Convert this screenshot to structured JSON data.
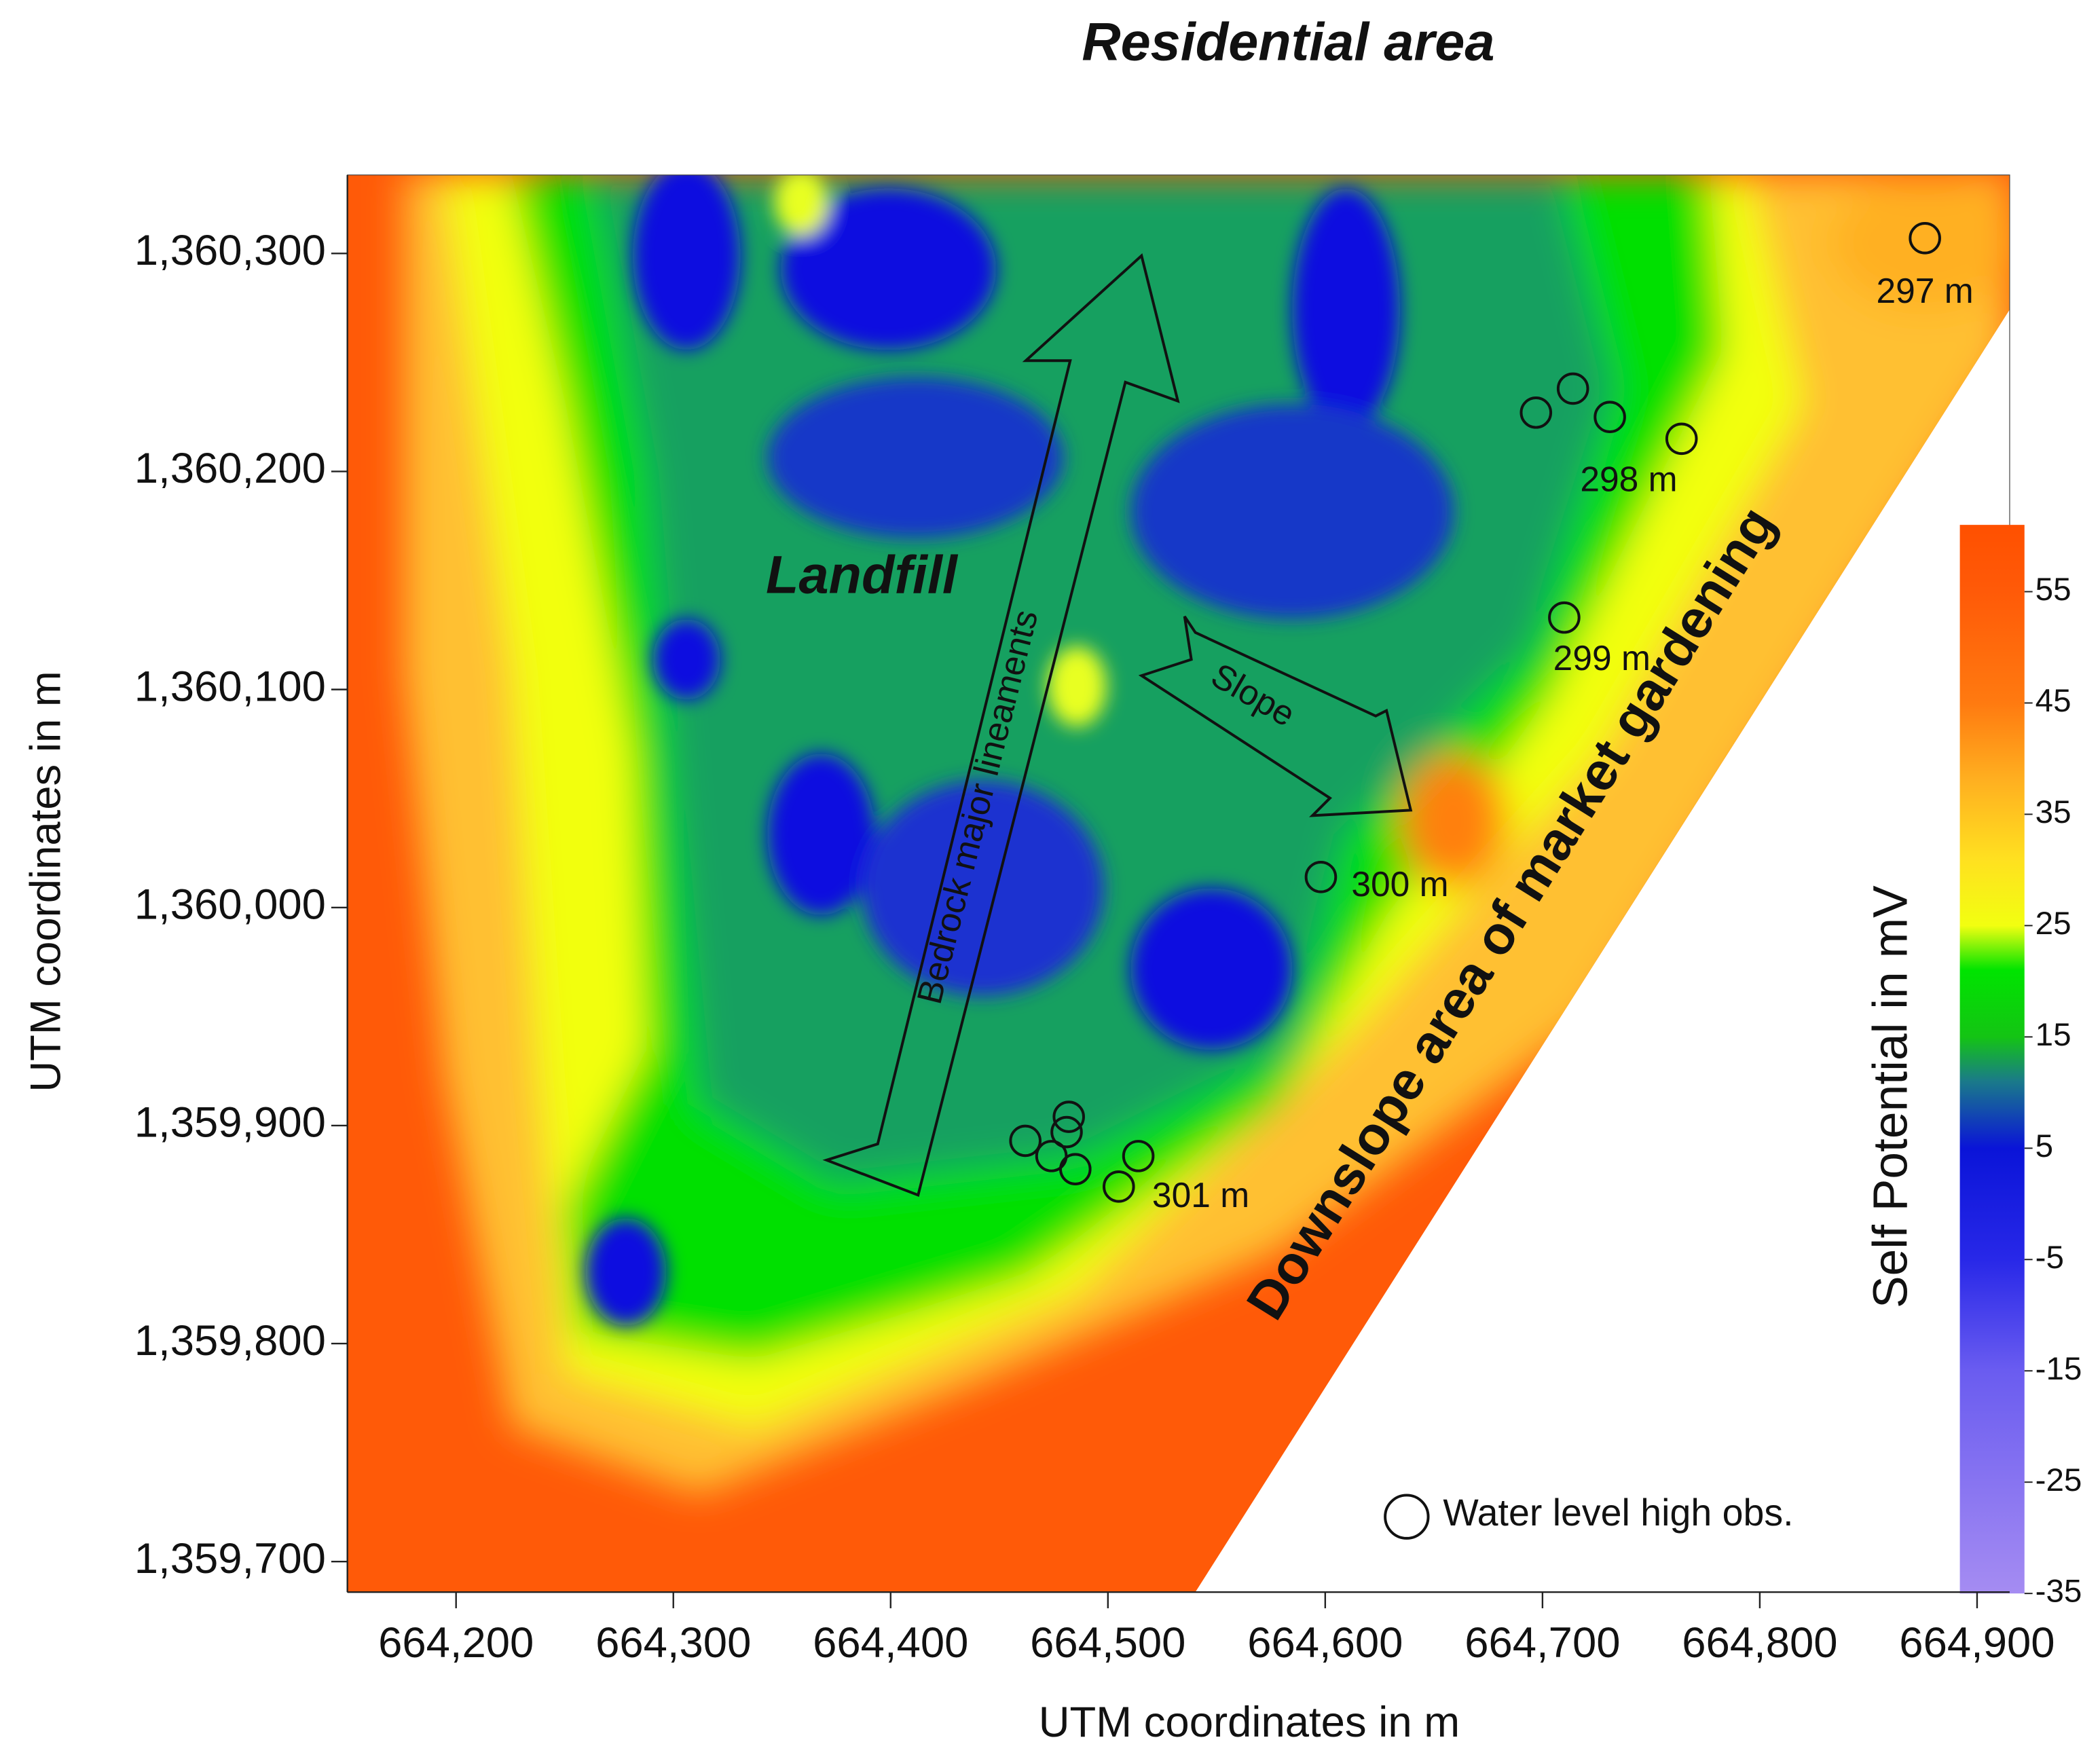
{
  "chart_data": {
    "type": "contour",
    "title": "Residential area",
    "x_label": "UTM coordinates in m",
    "y_label": "UTM coordinates in m",
    "xlim": [
      664150,
      664915
    ],
    "ylim": [
      1359686,
      1360336
    ],
    "xticks": [
      {
        "value": 664200,
        "label": "664,200"
      },
      {
        "value": 664300,
        "label": "664,300"
      },
      {
        "value": 664400,
        "label": "664,400"
      },
      {
        "value": 664500,
        "label": "664,500"
      },
      {
        "value": 664600,
        "label": "664,600"
      },
      {
        "value": 664700,
        "label": "664,700"
      },
      {
        "value": 664800,
        "label": "664,800"
      },
      {
        "value": 664900,
        "label": "664,900"
      }
    ],
    "yticks": [
      {
        "value": 1359700,
        "label": "1,359,700"
      },
      {
        "value": 1359800,
        "label": "1,359,800"
      },
      {
        "value": 1359900,
        "label": "1,359,900"
      },
      {
        "value": 1360000,
        "label": "1,360,000"
      },
      {
        "value": 1360100,
        "label": "1,360,100"
      },
      {
        "value": 1360200,
        "label": "1,360,200"
      },
      {
        "value": 1360300,
        "label": "1,360,300"
      }
    ],
    "colorbar_label": "Self Potential in mV",
    "clim": [
      -35,
      61
    ],
    "cticks": [
      -35,
      -25,
      -15,
      -5,
      5,
      15,
      25,
      35,
      45,
      55
    ],
    "colorscale": [
      [
        -35,
        "#a58cf2"
      ],
      [
        -15,
        "#6a5cf0"
      ],
      [
        -5,
        "#2828e8"
      ],
      [
        5,
        "#0a14d8"
      ],
      [
        11,
        "#1a7a8a"
      ],
      [
        15,
        "#14c414"
      ],
      [
        21,
        "#00e400"
      ],
      [
        25,
        "#f2ff10"
      ],
      [
        31,
        "#ffe020"
      ],
      [
        38,
        "#ffb020"
      ],
      [
        45,
        "#ff7a10"
      ],
      [
        55,
        "#ff5a08"
      ],
      [
        61,
        "#ff5000"
      ]
    ],
    "series": [
      {
        "name": "Water level high obs.",
        "color": "#111111",
        "x": [
          664876,
          664697,
          664714,
          664731,
          664764,
          664710,
          664598,
          664462,
          664482,
          664481,
          664474,
          664485,
          664505,
          664514
        ],
        "y": [
          1360307,
          1360227,
          1360238,
          1360225,
          1360215,
          1360133,
          1360014,
          1359893,
          1359904,
          1359897,
          1359886,
          1359880,
          1359872,
          1359886
        ]
      }
    ],
    "annotations": [
      "297 m",
      "298 m",
      "299 m",
      "300 m",
      "301 m",
      "Landfill",
      "Bedrock major lineaments",
      "Slope",
      "Downslope area of market gardening"
    ]
  }
}
